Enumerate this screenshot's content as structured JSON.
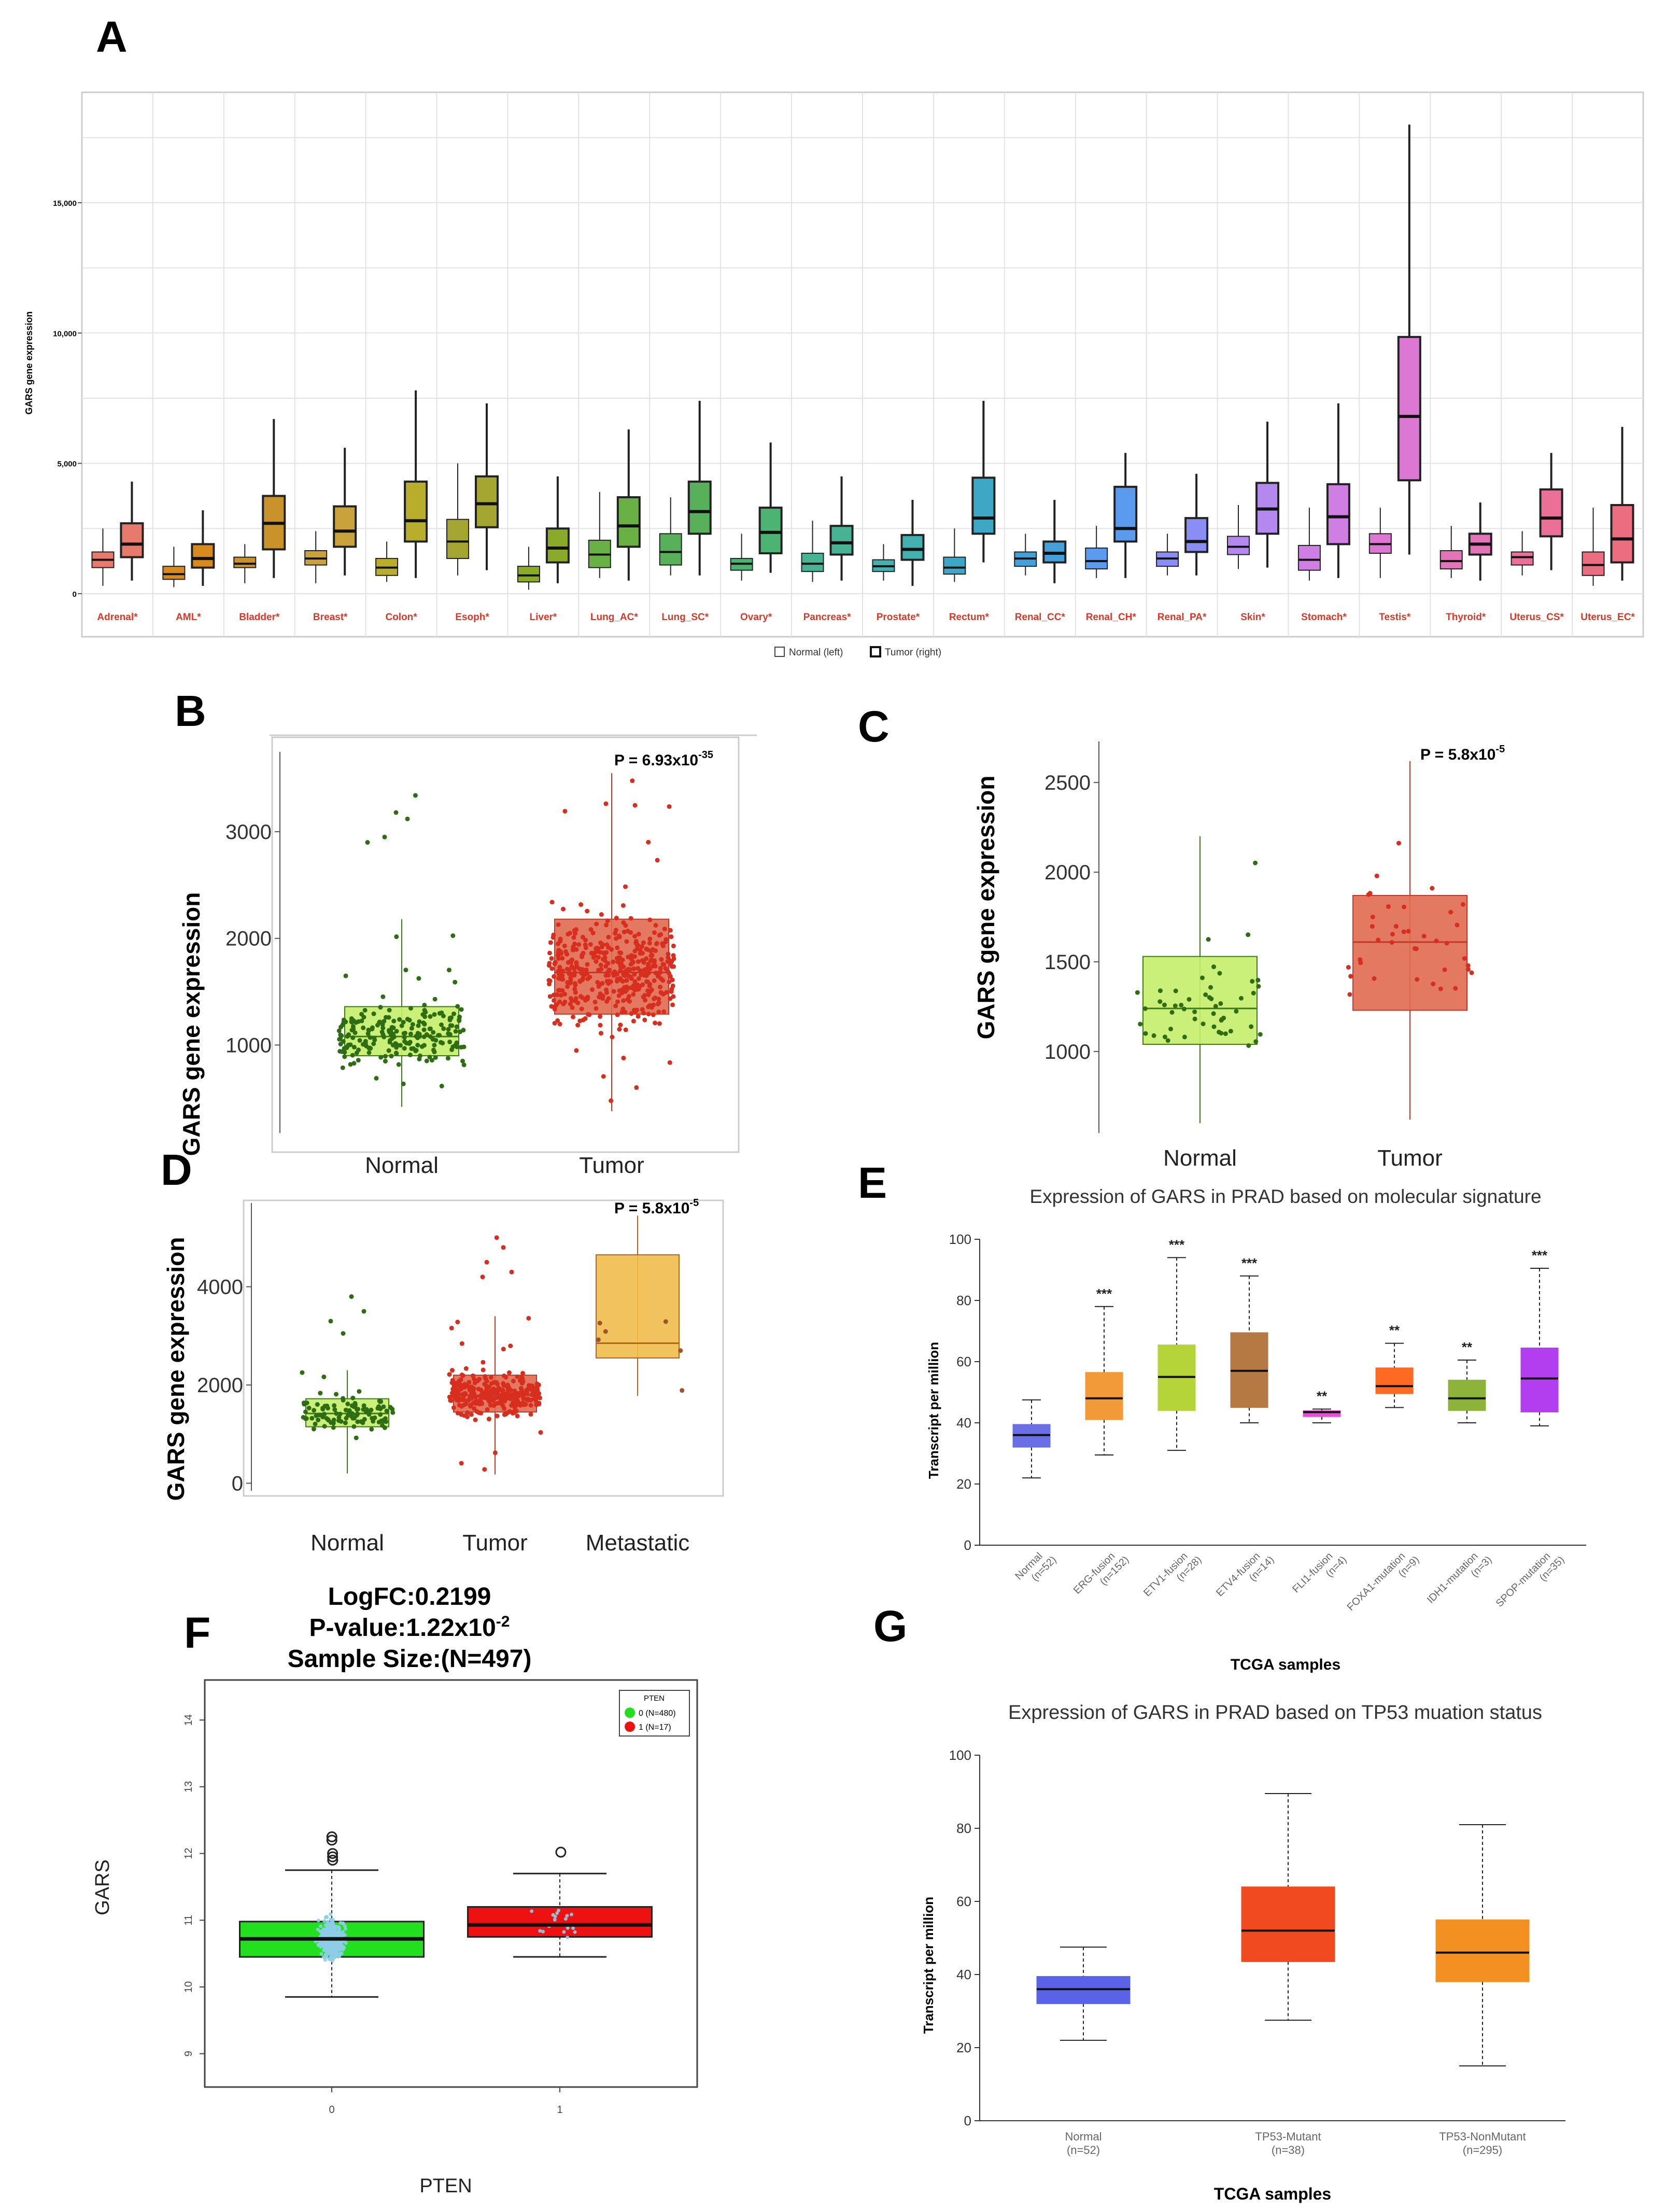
{
  "panels": {
    "A": {
      "letter": "A",
      "chart_data": {
        "type": "box",
        "ylabel": "GARS gene expression",
        "ylim": [
          -300,
          18800
        ],
        "yticks": [
          0,
          5000,
          10000,
          15000
        ],
        "ytick_labels": [
          "0",
          "5,000",
          "10,000",
          "15,000"
        ],
        "legend": {
          "normal": "Normal (left)",
          "tumor": "Tumor (right)"
        },
        "categories": [
          "Adrenal*",
          "AML*",
          "Bladder*",
          "Breast*",
          "Colon*",
          "Esoph*",
          "Liver*",
          "Lung_AC*",
          "Lung_SC*",
          "Ovary*",
          "Pancreas*",
          "Prostate*",
          "Rectum*",
          "Renal_CC*",
          "Renal_CH*",
          "Renal_PA*",
          "Skin*",
          "Stomach*",
          "Testis*",
          "Thyroid*",
          "Uterus_CS*",
          "Uterus_EC*"
        ],
        "colors": [
          "#e87a6d",
          "#d98a1d",
          "#c9922a",
          "#c9a23c",
          "#b8ae2c",
          "#a5a632",
          "#8aaa2a",
          "#69b045",
          "#58b05a",
          "#4db373",
          "#47b394",
          "#44b0b0",
          "#3fa7c6",
          "#43a0da",
          "#5a9bf0",
          "#8a8ef4",
          "#b389f0",
          "#cf7fe4",
          "#dc78d4",
          "#e374b8",
          "#ea7098",
          "#ea6e80"
        ],
        "normal": [
          [
            300,
            1000,
            1300,
            1600,
            2500
          ],
          [
            250,
            550,
            750,
            1050,
            1800
          ],
          [
            400,
            1000,
            1150,
            1400,
            1900
          ],
          [
            400,
            1100,
            1350,
            1650,
            2400
          ],
          [
            450,
            700,
            1000,
            1350,
            2000
          ],
          [
            700,
            1350,
            2000,
            2850,
            5000
          ],
          [
            150,
            450,
            700,
            1050,
            1800
          ],
          [
            600,
            1000,
            1500,
            2050,
            3900
          ],
          [
            700,
            1100,
            1600,
            2300,
            3700
          ],
          [
            500,
            900,
            1150,
            1350,
            2300
          ],
          [
            450,
            850,
            1150,
            1550,
            2800
          ],
          [
            500,
            850,
            1050,
            1300,
            1900
          ],
          [
            450,
            750,
            1000,
            1400,
            2500
          ],
          [
            700,
            1050,
            1350,
            1600,
            2300
          ],
          [
            600,
            950,
            1250,
            1750,
            2600
          ],
          [
            700,
            1050,
            1350,
            1600,
            2300
          ],
          [
            950,
            1500,
            1800,
            2200,
            3400
          ],
          [
            500,
            900,
            1300,
            1850,
            3300
          ],
          [
            600,
            1550,
            1900,
            2300,
            3300
          ],
          [
            600,
            950,
            1250,
            1650,
            2600
          ],
          [
            700,
            1100,
            1400,
            1600,
            2400
          ],
          [
            300,
            700,
            1100,
            1600,
            3300
          ]
        ],
        "tumor": [
          [
            500,
            1400,
            1900,
            2700,
            4300
          ],
          [
            300,
            1000,
            1350,
            1900,
            3200
          ],
          [
            600,
            1700,
            2700,
            3750,
            6700
          ],
          [
            700,
            1800,
            2400,
            3350,
            5600
          ],
          [
            600,
            2000,
            2800,
            4300,
            7800
          ],
          [
            900,
            2550,
            3450,
            4500,
            7300
          ],
          [
            400,
            1200,
            1750,
            2500,
            4500
          ],
          [
            500,
            1800,
            2600,
            3700,
            6300
          ],
          [
            700,
            2300,
            3150,
            4300,
            7400
          ],
          [
            800,
            1550,
            2350,
            3300,
            5800
          ],
          [
            500,
            1500,
            1950,
            2600,
            4500
          ],
          [
            300,
            1300,
            1700,
            2250,
            3600
          ],
          [
            1200,
            2300,
            2900,
            4450,
            7400
          ],
          [
            400,
            1200,
            1550,
            2000,
            3600
          ],
          [
            600,
            2000,
            2500,
            4100,
            5400
          ],
          [
            700,
            1600,
            2000,
            2900,
            4600
          ],
          [
            1000,
            2300,
            3250,
            4250,
            6600
          ],
          [
            600,
            1900,
            2950,
            4200,
            7300
          ],
          [
            1500,
            4350,
            6800,
            9850,
            18000
          ],
          [
            500,
            1500,
            1900,
            2300,
            3500
          ],
          [
            900,
            2200,
            2900,
            4000,
            5400
          ],
          [
            500,
            1200,
            2100,
            3400,
            6400
          ]
        ]
      }
    },
    "B": {
      "letter": "B",
      "pvalue": "P = 6.93x10",
      "pexp": "-35",
      "chart_data": {
        "type": "box",
        "ylabel": "GARS gene expression",
        "ylim": [
          200,
          3700
        ],
        "yticks": [
          1000,
          2000,
          3000
        ],
        "categories": [
          "Normal",
          "Tumor"
        ],
        "colors": [
          "#c4ee6c",
          "#e06a50"
        ],
        "point_colors": [
          "#2f6d12",
          "#d72e1f"
        ],
        "median_colors": [
          "#3d7a1a",
          "#c0392b"
        ],
        "boxes": [
          [
            420,
            900,
            1080,
            1360,
            2180
          ],
          [
            380,
            1290,
            1680,
            2180,
            3550
          ]
        ],
        "n": [
          220,
          460
        ],
        "outliers": [
          [
            [
              0.35,
              2950
            ],
            [
              0.45,
              3180
            ],
            [
              0.62,
              3340
            ],
            [
              0.55,
              3120
            ],
            [
              0.2,
              2900
            ]
          ],
          []
        ]
      }
    },
    "C": {
      "letter": "C",
      "pvalue": "P = 5.8x10",
      "pexp": "-5",
      "chart_data": {
        "type": "box",
        "ylabel": "GARS gene expression",
        "ylim": [
          560,
          2700
        ],
        "yticks": [
          1000,
          1500,
          2000,
          2500
        ],
        "categories": [
          "Normal",
          "Tumor"
        ],
        "colors": [
          "#c4ee6c",
          "#e06a50"
        ],
        "point_colors": [
          "#2f6d12",
          "#d72e1f"
        ],
        "median_colors": [
          "#3d7a1a",
          "#c0392b"
        ],
        "boxes": [
          [
            600,
            1040,
            1240,
            1530,
            2200
          ],
          [
            620,
            1230,
            1610,
            1870,
            2620
          ]
        ],
        "n": [
          52,
          38
        ],
        "outliers": [
          [],
          []
        ]
      }
    },
    "D": {
      "letter": "D",
      "pvalue": "P = 5.8x10",
      "pexp": "-5",
      "chart_data": {
        "type": "box",
        "ylabel": "GARS gene expression",
        "ylim": [
          -100,
          5600
        ],
        "yticks": [
          0,
          2000,
          4000
        ],
        "categories": [
          "Normal",
          "Tumor",
          "Metastatic"
        ],
        "colors": [
          "#c4ee6c",
          "#e06a50",
          "#f0bd4a"
        ],
        "point_colors": [
          "#2f6d12",
          "#d72e1f",
          "#a0522d"
        ],
        "median_colors": [
          "#3d7a1a",
          "#c0392b",
          "#b5651d"
        ],
        "boxes": [
          [
            200,
            1150,
            1420,
            1720,
            2300
          ],
          [
            180,
            1450,
            1790,
            2200,
            3400
          ],
          [
            1780,
            2550,
            2850,
            4650,
            5450
          ]
        ],
        "n": [
          110,
          320,
          6
        ],
        "outliers": [
          [
            [
              0.3,
              3300
            ],
            [
              0.55,
              3800
            ],
            [
              0.7,
              3500
            ],
            [
              0.45,
              3050
            ]
          ],
          [
            [
              0.4,
              4500
            ],
            [
              0.6,
              4800
            ],
            [
              0.52,
              5000
            ],
            [
              0.35,
              4200
            ],
            [
              0.7,
              4300
            ]
          ],
          []
        ]
      }
    },
    "E": {
      "letter": "E",
      "title": "Expression of GARS in PRAD based on molecular signature",
      "chart_data": {
        "type": "box",
        "ylabel": "Transcript per million",
        "xlabel": "TCGA samples",
        "ylim": [
          0,
          100
        ],
        "yticks": [
          0,
          20,
          40,
          60,
          80,
          100
        ],
        "categories": [
          "Normal\n(n=52)",
          "ERG-fusion\n(n=152)",
          "ETV1-fusion\n(n=28)",
          "ETV4-fusion\n(n=14)",
          "FLI1-fusion\n(n=4)",
          "FOXA1-mutation\n(n=9)",
          "IDH1-mutation\n(n=3)",
          "SPOP-mutation\n(n=35)"
        ],
        "labels": [
          "Normal",
          "ERG-fusion",
          "ETV1-fusion",
          "ETV4-fusion",
          "FLI1-fusion",
          "FOXA1-mutation",
          "IDH1-mutation",
          "SPOP-mutation"
        ],
        "ns": [
          "(n=52)",
          "(n=152)",
          "(n=28)",
          "(n=14)",
          "(n=4)",
          "(n=9)",
          "(n=3)",
          "(n=35)"
        ],
        "colors": [
          "#6a6fe6",
          "#f29a3a",
          "#b5d43a",
          "#b57a44",
          "#e94fd6",
          "#ff6a22",
          "#8db33a",
          "#b33ef0"
        ],
        "sig": [
          "",
          "***",
          "***",
          "***",
          "**",
          "**",
          "**",
          "***"
        ],
        "boxes": [
          [
            22,
            32,
            36,
            39.5,
            47.5
          ],
          [
            29.5,
            41,
            48,
            56.5,
            78
          ],
          [
            31,
            44,
            55,
            65.5,
            94
          ],
          [
            40,
            45,
            57,
            69.5,
            88
          ],
          [
            40,
            42,
            43.5,
            44,
            44.5
          ],
          [
            45,
            49.5,
            52,
            58,
            66
          ],
          [
            40,
            44,
            48,
            54,
            60.5
          ],
          [
            39,
            43.5,
            54.5,
            64.5,
            90.5
          ]
        ]
      }
    },
    "F": {
      "letter": "F",
      "header": [
        "LogFC:0.2199",
        "P-value:1.22x10",
        "Sample Size:(N=497)"
      ],
      "pexp": "-2",
      "legend_title": "PTEN",
      "legend": [
        "0 (N=480)",
        "1 (N=17)"
      ],
      "chart_data": {
        "type": "box",
        "ylabel": "GARS",
        "xlabel": "PTEN",
        "ylim": [
          8.5,
          14.6
        ],
        "yticks": [
          9,
          10,
          11,
          12,
          13,
          14
        ],
        "categories": [
          "0",
          "1"
        ],
        "colors": [
          "#22e01f",
          "#ee1111"
        ],
        "boxes": [
          [
            9.85,
            10.45,
            10.72,
            10.98,
            11.75
          ],
          [
            10.45,
            10.75,
            10.93,
            11.2,
            11.7
          ]
        ],
        "outliers": [
          [
            12.25,
            12.2,
            12.0,
            11.95,
            11.9
          ],
          [
            12.02
          ]
        ]
      }
    },
    "G": {
      "letter": "G",
      "title": "Expression of GARS in PRAD based on TP53 muation status",
      "chart_data": {
        "type": "box",
        "ylabel": "Transcript per million",
        "xlabel": "TCGA samples",
        "ylim": [
          0,
          100
        ],
        "yticks": [
          0,
          20,
          40,
          60,
          80,
          100
        ],
        "categories": [
          "Normal\n(n=52)",
          "TP53-Mutant\n(n=38)",
          "TP53-NonMutant\n(n=295)"
        ],
        "labels": [
          "Normal",
          "TP53-Mutant",
          "TP53-NonMutant"
        ],
        "ns": [
          "(n=52)",
          "(n=38)",
          "(n=295)"
        ],
        "colors": [
          "#5a62e8",
          "#f04a1e",
          "#f29022"
        ],
        "boxes": [
          [
            22,
            32,
            36,
            39.5,
            47.5
          ],
          [
            27.5,
            43.5,
            52,
            64,
            89.5
          ],
          [
            15,
            38,
            46,
            55,
            81
          ]
        ]
      }
    }
  }
}
